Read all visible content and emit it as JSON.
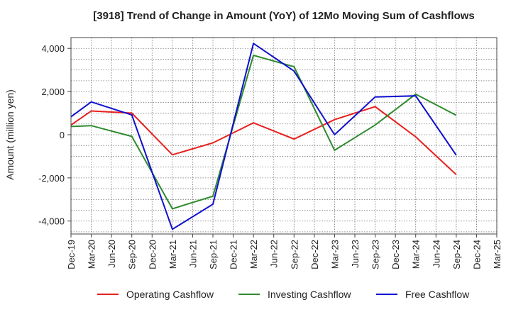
{
  "chart_data": {
    "type": "line",
    "title": "[3918]  Trend of Change in Amount (YoY) of 12Mo Moving Sum of Cashflows",
    "xlabel": "",
    "ylabel": "Amount (million yen)",
    "ylim": [
      -4600,
      4500
    ],
    "yticks": [
      -4000,
      -2000,
      0,
      2000,
      4000
    ],
    "ytick_labels": [
      "-4,000",
      "-2,000",
      "0",
      "2,000",
      "4,000"
    ],
    "categories": [
      "Dec-19",
      "Mar-20",
      "Jun-20",
      "Sep-20",
      "Dec-20",
      "Mar-21",
      "Jun-21",
      "Sep-21",
      "Dec-21",
      "Mar-22",
      "Jun-22",
      "Sep-22",
      "Dec-22",
      "Mar-23",
      "Jun-23",
      "Sep-23",
      "Dec-23",
      "Mar-24",
      "Jun-24",
      "Sep-24",
      "Dec-24",
      "Mar-25"
    ],
    "grid": true,
    "legend_position": "bottom",
    "series": [
      {
        "name": "Operating Cashflow",
        "color": "#e8201e",
        "values": [
          450,
          1100,
          null,
          1000,
          null,
          -930,
          null,
          -380,
          null,
          550,
          null,
          -200,
          null,
          700,
          null,
          1300,
          null,
          -100,
          null,
          -1850,
          null,
          null
        ]
      },
      {
        "name": "Investing Cashflow",
        "color": "#2e8b2e",
        "values": [
          380,
          420,
          null,
          -80,
          null,
          -3430,
          null,
          -2850,
          null,
          3680,
          null,
          3150,
          null,
          -720,
          null,
          450,
          null,
          1880,
          null,
          900,
          null,
          null
        ]
      },
      {
        "name": "Free Cashflow",
        "color": "#1010d0",
        "values": [
          830,
          1520,
          null,
          920,
          null,
          -4380,
          null,
          -3220,
          null,
          4230,
          null,
          2950,
          null,
          0,
          null,
          1750,
          null,
          1800,
          null,
          -950,
          null,
          null
        ]
      }
    ]
  }
}
